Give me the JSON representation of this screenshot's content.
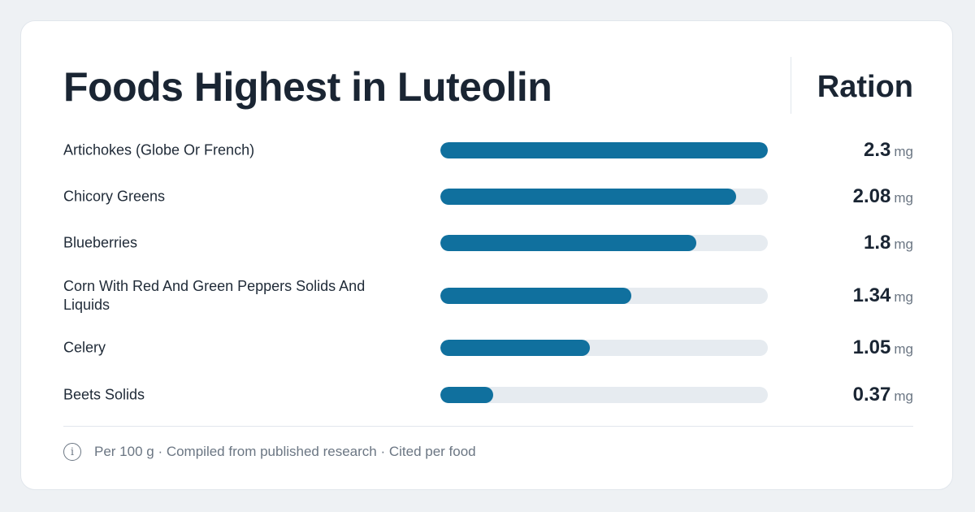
{
  "title": "Foods Highest in Luteolin",
  "column_header": "Ration",
  "unit": "mg",
  "footer": {
    "icon": "info-icon",
    "text": "Per 100 g · Compiled from published research · Cited per food"
  },
  "colors": {
    "bar": "#10709e",
    "track": "#e6ebf0",
    "background": "#eef1f4"
  },
  "chart_data": {
    "type": "bar",
    "orientation": "horizontal",
    "title": "Foods Highest in Luteolin",
    "categories": [
      "Artichokes (Globe Or French)",
      "Chicory Greens",
      "Blueberries",
      "Corn With Red And Green Peppers Solids And Liquids",
      "Celery",
      "Beets Solids"
    ],
    "values": [
      2.3,
      2.08,
      1.8,
      1.34,
      1.05,
      0.37
    ],
    "value_labels": [
      "2.3",
      "2.08",
      "1.8",
      "1.34",
      "1.05",
      "0.37"
    ],
    "unit": "mg",
    "xlim": [
      0,
      2.3
    ],
    "grid": false
  }
}
